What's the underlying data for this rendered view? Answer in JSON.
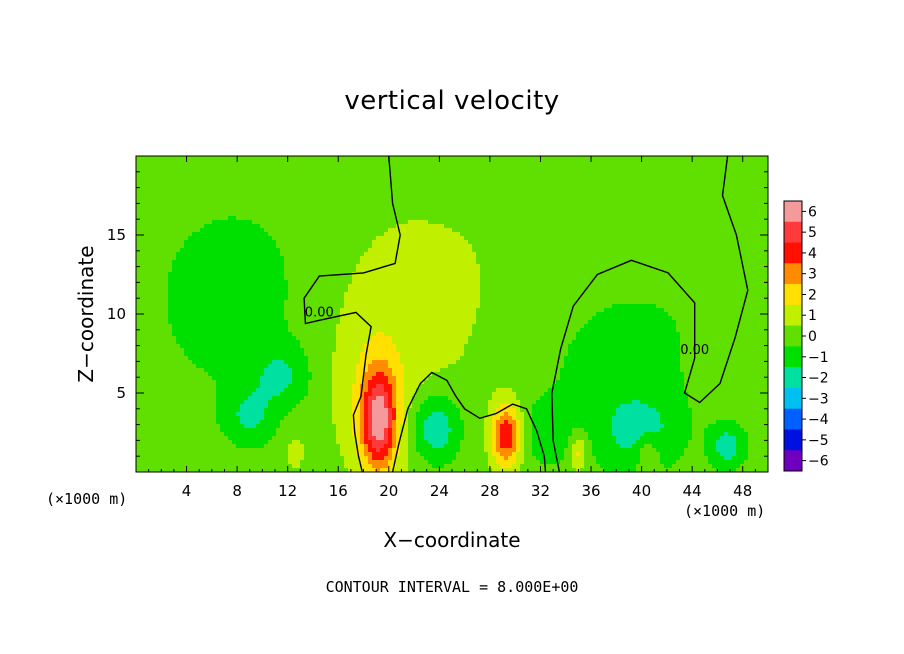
{
  "chart_data": {
    "type": "heatmap",
    "title": "vertical velocity",
    "xlabel": "X−coordinate",
    "ylabel": "Z−coordinate",
    "x_units_label": "(×1000 m)",
    "footer": "CONTOUR INTERVAL = 8.000E+00",
    "xlim": [
      0,
      50
    ],
    "ylim": [
      0,
      20
    ],
    "x_ticks": [
      4,
      8,
      12,
      16,
      20,
      24,
      28,
      32,
      36,
      40,
      44,
      48
    ],
    "x_tick_labels": [
      "4",
      "8",
      "12",
      "16",
      "20",
      "24",
      "28",
      "32",
      "36",
      "40",
      "44",
      "48"
    ],
    "y_ticks": [
      5,
      10,
      15
    ],
    "y_tick_labels": [
      "5",
      "10",
      "15"
    ],
    "colorbar": {
      "levels": [
        6,
        5,
        4,
        3,
        2,
        1,
        0,
        -1,
        -2,
        -3,
        -4,
        -5,
        -6
      ],
      "labels": [
        "6",
        "5",
        "4",
        "3",
        "2",
        "1",
        "0",
        "−1",
        "−2",
        "−3",
        "−4",
        "−5",
        "−6"
      ],
      "colors": [
        "#f59a9a",
        "#ff3a3a",
        "#ff1000",
        "#ff8c00",
        "#ffe000",
        "#c0f000",
        "#60e000",
        "#00e000",
        "#00e0a0",
        "#00c0f0",
        "#0060ff",
        "#0010e0",
        "#7000c0"
      ]
    },
    "contour_label": "0.00",
    "zero_contours": [
      {
        "name": "zero-contour-left",
        "label": "0.00",
        "points": [
          [
            20,
            20
          ],
          [
            20.3,
            17
          ],
          [
            20.9,
            15
          ],
          [
            20.5,
            13.2
          ],
          [
            18,
            12.6
          ],
          [
            14.5,
            12.4
          ],
          [
            13.3,
            11
          ],
          [
            13.4,
            9.4
          ],
          [
            14.5,
            9.6
          ],
          [
            17.4,
            10.1
          ],
          [
            18.6,
            9.2
          ],
          [
            18.2,
            7.4
          ],
          [
            17.8,
            4.8
          ],
          [
            17.2,
            3.6
          ],
          [
            17.3,
            2.5
          ],
          [
            17.6,
            1.0
          ],
          [
            17.9,
            0
          ]
        ]
      },
      {
        "name": "zero-contour-right",
        "label": "0.00",
        "points": [
          [
            33.5,
            0
          ],
          [
            33.0,
            2.0
          ],
          [
            32.9,
            5.0
          ],
          [
            33.6,
            7.8
          ],
          [
            34.6,
            10.5
          ],
          [
            36.5,
            12.5
          ],
          [
            39.2,
            13.4
          ],
          [
            42.1,
            12.6
          ],
          [
            44.2,
            10.7
          ],
          [
            44.2,
            7.2
          ],
          [
            43.4,
            5.0
          ],
          [
            44.6,
            4.4
          ],
          [
            46.2,
            5.6
          ],
          [
            47.4,
            8.5
          ],
          [
            48.4,
            11.5
          ],
          [
            47.5,
            15.0
          ],
          [
            46.4,
            17.5
          ],
          [
            46.8,
            20
          ]
        ]
      },
      {
        "name": "zero-contour-middle",
        "label": "",
        "points": [
          [
            20.3,
            0
          ],
          [
            20.8,
            1.8
          ],
          [
            21.5,
            4.0
          ],
          [
            22.5,
            5.6
          ],
          [
            23.4,
            6.3
          ],
          [
            24.6,
            5.8
          ],
          [
            25.3,
            4.8
          ],
          [
            26.0,
            4.0
          ],
          [
            27.2,
            3.4
          ],
          [
            28.5,
            3.7
          ],
          [
            29.8,
            4.3
          ],
          [
            30.9,
            4.0
          ],
          [
            31.7,
            2.6
          ],
          [
            32.3,
            1.0
          ],
          [
            32.4,
            0
          ]
        ]
      }
    ],
    "features": [
      {
        "x": 19.2,
        "z": 3.3,
        "value": 5.5,
        "sx": 1.0,
        "sz": 2.2
      },
      {
        "x": 29.3,
        "z": 2.3,
        "value": 4.2,
        "sx": 0.8,
        "sz": 1.4
      },
      {
        "x": 19.0,
        "z": 6.5,
        "value": 1.2,
        "sx": 3.2,
        "sz": 5.0
      },
      {
        "x": 24.5,
        "z": 12.0,
        "value": 0.5,
        "sx": 6.0,
        "sz": 6.0
      },
      {
        "x": 23.7,
        "z": 2.8,
        "value": -2.6,
        "sx": 1.4,
        "sz": 1.6
      },
      {
        "x": 11.5,
        "z": 6.0,
        "value": -1.5,
        "sx": 1.6,
        "sz": 1.3
      },
      {
        "x": 9.0,
        "z": 3.5,
        "value": -1.5,
        "sx": 1.3,
        "sz": 1.2
      },
      {
        "x": 8.0,
        "z": 11.0,
        "value": -0.8,
        "sx": 6.5,
        "sz": 6.0
      },
      {
        "x": 37.5,
        "z": 6.0,
        "value": -1.0,
        "sx": 4.0,
        "sz": 4.0
      },
      {
        "x": 40.0,
        "z": 2.5,
        "value": -1.5,
        "sx": 2.2,
        "sz": 1.6
      },
      {
        "x": 32.5,
        "z": 2.5,
        "value": -1.2,
        "sx": 1.2,
        "sz": 1.4
      },
      {
        "x": 46.8,
        "z": 1.6,
        "value": -2.0,
        "sx": 1.0,
        "sz": 1.0
      },
      {
        "x": 35.0,
        "z": 1.2,
        "value": 2.0,
        "sx": 0.5,
        "sz": 0.8
      },
      {
        "x": 40.5,
        "z": 1.2,
        "value": 1.6,
        "sx": 0.6,
        "sz": 0.8
      },
      {
        "x": 12.5,
        "z": 1.2,
        "value": 1.0,
        "sx": 0.6,
        "sz": 0.8
      },
      {
        "x": 45.0,
        "z": 14.0,
        "value": -0.4,
        "sx": 4.0,
        "sz": 6.0
      }
    ]
  }
}
